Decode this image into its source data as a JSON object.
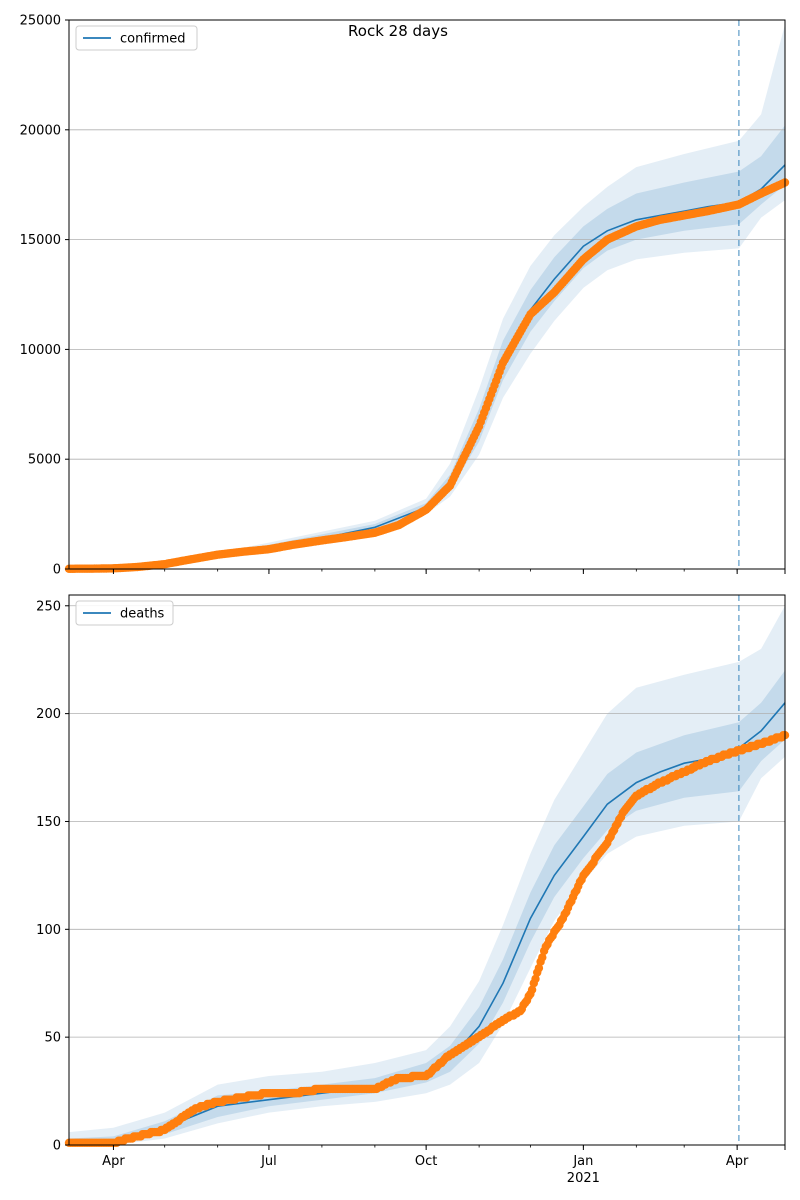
{
  "figure": {
    "suptitle": "Rock 28 days",
    "colors": {
      "model": "#1f77b4",
      "observed": "#ff7f0e",
      "band": "#1f77b4",
      "grid": "#b0b0b0",
      "forecast_line": "#1f77b4"
    },
    "x_ticks": [
      {
        "date": "2020-04-01",
        "label": "Apr",
        "year": ""
      },
      {
        "date": "2020-07-01",
        "label": "Jul",
        "year": ""
      },
      {
        "date": "2020-10-01",
        "label": "Oct",
        "year": ""
      },
      {
        "date": "2021-01-01",
        "label": "Jan",
        "year": "2021"
      },
      {
        "date": "2021-04-01",
        "label": "Apr",
        "year": ""
      }
    ],
    "forecast_start": "2021-04-02"
  },
  "chart_data": [
    {
      "type": "line",
      "panel": "top",
      "legend": "confirmed",
      "legend_position": "top-left",
      "grid": "horizontal",
      "xlim": [
        "2020-03-06",
        "2021-04-29"
      ],
      "ylim": [
        0,
        25000
      ],
      "yticks": [
        0,
        5000,
        10000,
        15000,
        20000,
        25000
      ],
      "series": [
        {
          "name": "confirmed",
          "kind": "model",
          "x": [
            "2020-03-06",
            "2020-04-01",
            "2020-05-01",
            "2020-06-01",
            "2020-07-01",
            "2020-08-01",
            "2020-09-01",
            "2020-10-01",
            "2020-10-15",
            "2020-11-01",
            "2020-11-15",
            "2020-12-01",
            "2020-12-15",
            "2021-01-01",
            "2021-01-15",
            "2021-02-01",
            "2021-02-15",
            "2021-03-01",
            "2021-03-15",
            "2021-04-02",
            "2021-04-15",
            "2021-04-29"
          ],
          "y": [
            0,
            20,
            200,
            700,
            1000,
            1400,
            1900,
            2800,
            3900,
            6500,
            9500,
            11800,
            13200,
            14700,
            15400,
            15900,
            16100,
            16300,
            16500,
            16700,
            17300,
            18400
          ]
        },
        {
          "name": "observed",
          "kind": "points",
          "x": [
            "2020-03-06",
            "2020-03-20",
            "2020-04-01",
            "2020-04-15",
            "2020-05-01",
            "2020-05-15",
            "2020-06-01",
            "2020-06-15",
            "2020-07-01",
            "2020-07-15",
            "2020-08-01",
            "2020-08-15",
            "2020-09-01",
            "2020-09-15",
            "2020-10-01",
            "2020-10-15",
            "2020-11-01",
            "2020-11-15",
            "2020-12-01",
            "2020-12-15",
            "2021-01-01",
            "2021-01-15",
            "2021-02-01",
            "2021-02-15",
            "2021-03-01",
            "2021-03-15",
            "2021-04-02",
            "2021-04-15",
            "2021-04-29"
          ],
          "y": [
            10,
            15,
            30,
            90,
            220,
            420,
            650,
            780,
            900,
            1100,
            1300,
            1450,
            1650,
            2000,
            2700,
            3800,
            6500,
            9400,
            11600,
            12600,
            14100,
            15000,
            15600,
            15900,
            16100,
            16300,
            16600,
            17100,
            17600
          ]
        },
        {
          "name": "band_95",
          "kind": "band",
          "x": [
            "2020-03-06",
            "2020-05-01",
            "2020-07-01",
            "2020-09-01",
            "2020-10-01",
            "2020-10-15",
            "2020-11-01",
            "2020-11-15",
            "2020-12-01",
            "2020-12-15",
            "2021-01-01",
            "2021-01-15",
            "2021-02-01",
            "2021-03-01",
            "2021-04-02",
            "2021-04-15",
            "2021-04-29"
          ],
          "lo": [
            0,
            150,
            850,
            1700,
            2500,
            3300,
            5200,
            7800,
            9800,
            11300,
            12800,
            13600,
            14100,
            14400,
            14600,
            16000,
            16800
          ],
          "hi": [
            50,
            260,
            1200,
            2200,
            3200,
            4800,
            8200,
            11400,
            13800,
            15200,
            16500,
            17400,
            18300,
            18900,
            19500,
            20700,
            24800
          ]
        },
        {
          "name": "band_50",
          "kind": "band",
          "x": [
            "2020-03-06",
            "2020-05-01",
            "2020-07-01",
            "2020-09-01",
            "2020-10-01",
            "2020-10-15",
            "2020-11-01",
            "2020-11-15",
            "2020-12-01",
            "2020-12-15",
            "2021-01-01",
            "2021-01-15",
            "2021-02-01",
            "2021-03-01",
            "2021-04-02",
            "2021-04-15",
            "2021-04-29"
          ],
          "lo": [
            0,
            180,
            920,
            1800,
            2650,
            3600,
            5800,
            8600,
            10800,
            12200,
            13700,
            14500,
            15000,
            15400,
            15700,
            16600,
            17500
          ],
          "hi": [
            30,
            230,
            1100,
            2050,
            3000,
            4300,
            7300,
            10400,
            12700,
            14200,
            15600,
            16400,
            17100,
            17600,
            18100,
            18800,
            20200
          ]
        }
      ]
    },
    {
      "type": "line",
      "panel": "bottom",
      "legend": "deaths",
      "legend_position": "top-left",
      "grid": "horizontal",
      "xlim": [
        "2020-03-06",
        "2021-04-29"
      ],
      "ylim": [
        0,
        255
      ],
      "yticks": [
        0,
        50,
        100,
        150,
        200,
        250
      ],
      "series": [
        {
          "name": "deaths",
          "kind": "model",
          "x": [
            "2020-03-06",
            "2020-04-01",
            "2020-05-01",
            "2020-06-01",
            "2020-07-01",
            "2020-08-01",
            "2020-09-01",
            "2020-10-01",
            "2020-10-15",
            "2020-11-01",
            "2020-11-15",
            "2020-12-01",
            "2020-12-15",
            "2021-01-01",
            "2021-01-15",
            "2021-02-01",
            "2021-02-15",
            "2021-03-01",
            "2021-03-15",
            "2021-04-02",
            "2021-04-15",
            "2021-04-29"
          ],
          "y": [
            0,
            1,
            8,
            18,
            21,
            24,
            27,
            33,
            40,
            55,
            75,
            105,
            125,
            143,
            158,
            168,
            173,
            177,
            179,
            184,
            192,
            205
          ]
        },
        {
          "name": "observed",
          "kind": "points",
          "x": [
            "2020-03-06",
            "2020-03-20",
            "2020-04-01",
            "2020-04-10",
            "2020-04-20",
            "2020-05-01",
            "2020-05-10",
            "2020-05-20",
            "2020-06-01",
            "2020-06-15",
            "2020-07-01",
            "2020-07-15",
            "2020-08-01",
            "2020-08-15",
            "2020-09-01",
            "2020-09-15",
            "2020-10-01",
            "2020-10-15",
            "2020-11-01",
            "2020-11-15",
            "2020-11-25",
            "2020-12-01",
            "2020-12-10",
            "2020-12-20",
            "2021-01-01",
            "2021-01-15",
            "2021-01-25",
            "2021-02-01",
            "2021-02-15",
            "2021-03-01",
            "2021-03-15",
            "2021-04-02",
            "2021-04-15",
            "2021-04-29"
          ],
          "y": [
            1,
            1,
            1,
            3,
            5,
            7,
            12,
            17,
            20,
            22,
            24,
            24,
            26,
            26,
            26,
            31,
            32,
            42,
            50,
            58,
            62,
            70,
            92,
            105,
            125,
            140,
            155,
            162,
            168,
            173,
            178,
            183,
            186,
            190
          ]
        },
        {
          "name": "band_95",
          "kind": "band",
          "x": [
            "2020-03-06",
            "2020-04-01",
            "2020-05-01",
            "2020-06-01",
            "2020-07-01",
            "2020-08-01",
            "2020-09-01",
            "2020-10-01",
            "2020-10-15",
            "2020-11-01",
            "2020-11-15",
            "2020-12-01",
            "2020-12-15",
            "2021-01-01",
            "2021-01-15",
            "2021-02-01",
            "2021-03-01",
            "2021-04-02",
            "2021-04-15",
            "2021-04-29"
          ],
          "lo": [
            0,
            0,
            3,
            10,
            15,
            18,
            20,
            24,
            28,
            38,
            56,
            82,
            104,
            122,
            135,
            143,
            148,
            150,
            170,
            180
          ],
          "hi": [
            6,
            8,
            15,
            28,
            32,
            34,
            38,
            44,
            55,
            76,
            102,
            135,
            160,
            182,
            200,
            212,
            218,
            224,
            230,
            250
          ]
        },
        {
          "name": "band_50",
          "kind": "band",
          "x": [
            "2020-03-06",
            "2020-04-01",
            "2020-05-01",
            "2020-06-01",
            "2020-07-01",
            "2020-08-01",
            "2020-09-01",
            "2020-10-01",
            "2020-10-15",
            "2020-11-01",
            "2020-11-15",
            "2020-12-01",
            "2020-12-15",
            "2021-01-01",
            "2021-01-15",
            "2021-02-01",
            "2021-03-01",
            "2021-04-02",
            "2021-04-15",
            "2021-04-29"
          ],
          "lo": [
            0,
            0,
            5,
            13,
            18,
            21,
            24,
            29,
            34,
            47,
            66,
            94,
            115,
            133,
            146,
            155,
            161,
            164,
            178,
            188
          ],
          "hi": [
            3,
            4,
            11,
            23,
            25,
            28,
            31,
            38,
            46,
            64,
            86,
            117,
            139,
            157,
            172,
            182,
            190,
            196,
            205,
            220
          ]
        }
      ]
    }
  ]
}
